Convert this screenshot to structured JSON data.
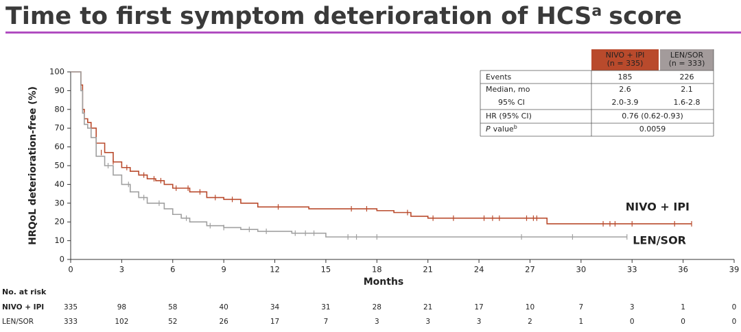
{
  "chart_data": {
    "type": "km-step",
    "title": "Time to first symptom deterioration of HCS",
    "title_sup": "a",
    "title_suffix": "score",
    "y_label": "HRQoL deterioration-free (%)",
    "x_label": "Months",
    "xlim": [
      0,
      39
    ],
    "xticks": [
      0,
      3,
      6,
      9,
      12,
      15,
      18,
      21,
      24,
      27,
      30,
      33,
      36,
      39
    ],
    "ylim": [
      0,
      100
    ],
    "yticks": [
      0,
      10,
      20,
      30,
      40,
      50,
      60,
      70,
      80,
      90,
      100
    ],
    "series": [
      {
        "name": "NIVO + IPI",
        "color": "#b94a2c",
        "x": [
          0,
          0.5,
          0.6,
          0.7,
          0.8,
          1.0,
          1.2,
          1.5,
          2,
          2.5,
          3,
          3.5,
          4,
          4.5,
          5,
          5.5,
          6,
          7,
          8,
          9,
          10,
          11,
          12,
          14,
          16,
          18,
          19,
          20,
          21,
          24,
          27.5,
          28,
          36.5
        ],
        "values": [
          100,
          100,
          93,
          80,
          75,
          73,
          70,
          62,
          57,
          52,
          49,
          47,
          45,
          43,
          42,
          40,
          38,
          36,
          33,
          32,
          30,
          28,
          28,
          27,
          27,
          26,
          25,
          23,
          22,
          22,
          22,
          19,
          19
        ],
        "censor_x": [
          1.8,
          2.5,
          3.3,
          4.3,
          4.9,
          5.3,
          6.2,
          6.9,
          7.6,
          8.5,
          9.5,
          12.2,
          16.5,
          17.4,
          19.8,
          21.3,
          22.5,
          24.3,
          24.8,
          25.2,
          26.8,
          27.2,
          27.4,
          31.3,
          31.7,
          32,
          33,
          35.5,
          36.5
        ],
        "censor_y": [
          57,
          52,
          49,
          45,
          43,
          42,
          38,
          38,
          36,
          33,
          32,
          28,
          27,
          27,
          25,
          22,
          22,
          22,
          22,
          22,
          22,
          22,
          22,
          19,
          19,
          19,
          19,
          19,
          19
        ]
      },
      {
        "name": "LEN/SOR",
        "color": "#a0a0a0",
        "x": [
          0,
          0.5,
          0.6,
          0.7,
          0.8,
          1.0,
          1.2,
          1.5,
          2,
          2.5,
          3,
          3.5,
          4,
          4.5,
          5,
          5.5,
          6,
          6.5,
          7,
          8,
          9,
          10,
          11,
          12,
          13,
          15,
          32.7
        ],
        "values": [
          100,
          100,
          90,
          78,
          72,
          70,
          65,
          55,
          50,
          45,
          40,
          36,
          33,
          30,
          30,
          27,
          24,
          22,
          20,
          18,
          17,
          16,
          15,
          15,
          14,
          12,
          12
        ],
        "censor_x": [
          2.2,
          3.4,
          4.3,
          5.2,
          6.8,
          8.2,
          9,
          10.5,
          11.5,
          13.2,
          13.8,
          14.3,
          16.3,
          16.8,
          18,
          26.5,
          29.5,
          32.7
        ],
        "censor_y": [
          50,
          40,
          33,
          30,
          22,
          18,
          17,
          16,
          15,
          14,
          14,
          14,
          12,
          12,
          12,
          12,
          12,
          12
        ]
      }
    ],
    "at_risk": {
      "title": "No. at risk",
      "rows": [
        {
          "name": "NIVO + IPI",
          "values": [
            335,
            98,
            58,
            40,
            34,
            31,
            28,
            21,
            17,
            10,
            7,
            3,
            1,
            0
          ]
        },
        {
          "name": "LEN/SOR",
          "values": [
            333,
            102,
            52,
            26,
            17,
            7,
            3,
            3,
            3,
            2,
            1,
            0,
            0,
            0
          ]
        }
      ]
    },
    "table": {
      "header": [
        [
          "NIVO + IPI",
          "(n = 335)"
        ],
        [
          "LEN/SOR",
          "(n = 333)"
        ]
      ],
      "rows": [
        [
          "Events",
          "185",
          "226"
        ],
        [
          "Median, mo",
          "2.6",
          "2.1"
        ],
        [
          "95% CI",
          "2.0-3.9",
          "1.6-2.8"
        ]
      ],
      "hr_label": "HR (95% CI)",
      "hr": "0.76 (0.62-0.93)",
      "p_label": "P",
      "p_label_rest": "value",
      "p_sup": "b",
      "p": "0.0059"
    }
  }
}
